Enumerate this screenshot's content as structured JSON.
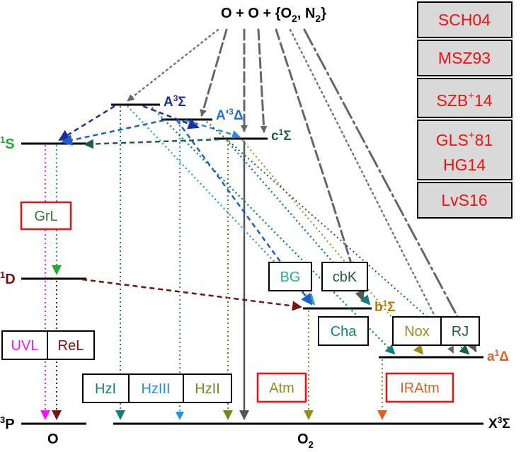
{
  "title": {
    "prefix": "O + O + {O",
    "sub1": "2",
    "mid": ", N",
    "sub2": "2",
    "suffix": "}"
  },
  "colors": {
    "red": "#ee1111",
    "green_dark": "#2e7d32",
    "green_bright": "#22aa33",
    "maroon": "#7a1010",
    "blue_dark": "#1f2e9e",
    "blue_med": "#1f5fcc",
    "blue_light": "#1f8fe8",
    "teal": "#127f7f",
    "teal_light": "#2aa7a7",
    "olive": "#6b8a1f",
    "khaki": "#9a8a1a",
    "orange": "#e06020",
    "magenta": "#ff10ff",
    "grey": "#666666",
    "gold": "#b07a00",
    "black": "#000000"
  },
  "references": [
    "SCH04",
    "MSZ93",
    "SZB",
    "+",
    "14",
    "GLS",
    "+",
    "81",
    "HG14",
    "LvS16"
  ],
  "states": {
    "S1": {
      "sup": "1",
      "main": "S"
    },
    "D1": {
      "sup": "1",
      "main": "D"
    },
    "P3": {
      "sup": "3",
      "main": "P"
    },
    "A3": {
      "main": "A",
      "sup": "3",
      "greek": "Σ"
    },
    "Ap3": {
      "main": "A'",
      "sup": "3",
      "greek": "Δ"
    },
    "c1": {
      "main": "c",
      "sup": "1",
      "greek": "Σ"
    },
    "b1": {
      "main": "b",
      "sup": "1",
      "greek": "Σ"
    },
    "a1": {
      "main": "a",
      "sup": "1",
      "greek": "Δ"
    },
    "X3": {
      "main": "X",
      "sup": "3",
      "greek": "Σ"
    }
  },
  "bottom_labels": {
    "atom": "O",
    "molecule": "O",
    "molecule_sub": "2"
  },
  "boxes": {
    "grl": "GrL",
    "uvl": "UVL",
    "rel": "ReL",
    "bg": "BG",
    "cbk": "cbK",
    "cha": "Cha",
    "nox": "Nox",
    "rj": "RJ",
    "hz1": "HzI",
    "hz3": "HzIII",
    "hz2": "HzII",
    "atm": "Atm",
    "iratm": "IRAtm"
  }
}
